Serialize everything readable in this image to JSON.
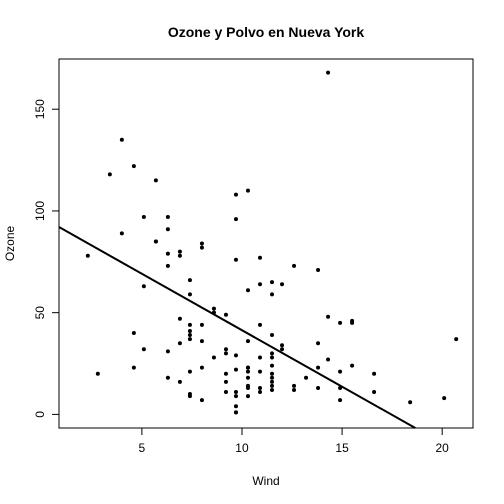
{
  "chart_data": {
    "type": "scatter",
    "title": "Ozone y Polvo en Nueva York",
    "xlabel": "Wind",
    "ylabel": "Ozone",
    "xlim": [
      0.86,
      21.54
    ],
    "ylim": [
      -6.68,
      174.68
    ],
    "x_ticks": [
      5,
      10,
      15,
      20
    ],
    "y_ticks": [
      0,
      50,
      100,
      150
    ],
    "grid": false,
    "legend": "none",
    "point_color": "#000000",
    "line_color": "#000000",
    "regression_line": {
      "intercept": 96.87,
      "slope": -5.55
    },
    "points": [
      {
        "x": 7.4,
        "y": 41
      },
      {
        "x": 8.0,
        "y": 36
      },
      {
        "x": 12.6,
        "y": 12
      },
      {
        "x": 11.5,
        "y": 18
      },
      {
        "x": 8.6,
        "y": 28
      },
      {
        "x": 13.8,
        "y": 23
      },
      {
        "x": 20.1,
        "y": 8
      },
      {
        "x": 9.7,
        "y": 1
      },
      {
        "x": 9.2,
        "y": 11
      },
      {
        "x": 10.9,
        "y": 11
      },
      {
        "x": 13.2,
        "y": 18
      },
      {
        "x": 11.5,
        "y": 14
      },
      {
        "x": 12.0,
        "y": 34
      },
      {
        "x": 18.4,
        "y": 6
      },
      {
        "x": 11.5,
        "y": 30
      },
      {
        "x": 9.7,
        "y": 11
      },
      {
        "x": 9.7,
        "y": 1
      },
      {
        "x": 16.6,
        "y": 11
      },
      {
        "x": 9.7,
        "y": 4
      },
      {
        "x": 12.0,
        "y": 32
      },
      {
        "x": 14.9,
        "y": 45
      },
      {
        "x": 5.7,
        "y": 115
      },
      {
        "x": 7.4,
        "y": 37
      },
      {
        "x": 9.7,
        "y": 29
      },
      {
        "x": 13.8,
        "y": 71
      },
      {
        "x": 11.5,
        "y": 39
      },
      {
        "x": 8.0,
        "y": 23
      },
      {
        "x": 14.9,
        "y": 21
      },
      {
        "x": 20.7,
        "y": 37
      },
      {
        "x": 9.2,
        "y": 20
      },
      {
        "x": 11.5,
        "y": 12
      },
      {
        "x": 10.3,
        "y": 13
      },
      {
        "x": 4.0,
        "y": 135
      },
      {
        "x": 9.2,
        "y": 49
      },
      {
        "x": 9.2,
        "y": 32
      },
      {
        "x": 10.9,
        "y": 64
      },
      {
        "x": 4.6,
        "y": 40
      },
      {
        "x": 10.9,
        "y": 77
      },
      {
        "x": 5.1,
        "y": 97
      },
      {
        "x": 6.3,
        "y": 97
      },
      {
        "x": 5.7,
        "y": 85
      },
      {
        "x": 7.4,
        "y": 10
      },
      {
        "x": 14.3,
        "y": 27
      },
      {
        "x": 14.9,
        "y": 7
      },
      {
        "x": 14.3,
        "y": 48
      },
      {
        "x": 6.9,
        "y": 35
      },
      {
        "x": 10.3,
        "y": 61
      },
      {
        "x": 6.3,
        "y": 79
      },
      {
        "x": 5.1,
        "y": 63
      },
      {
        "x": 11.5,
        "y": 16
      },
      {
        "x": 6.9,
        "y": 80
      },
      {
        "x": 9.7,
        "y": 108
      },
      {
        "x": 11.5,
        "y": 20
      },
      {
        "x": 8.6,
        "y": 52
      },
      {
        "x": 8.0,
        "y": 82
      },
      {
        "x": 8.6,
        "y": 50
      },
      {
        "x": 12.0,
        "y": 64
      },
      {
        "x": 7.4,
        "y": 59
      },
      {
        "x": 7.4,
        "y": 39
      },
      {
        "x": 7.4,
        "y": 9
      },
      {
        "x": 9.2,
        "y": 16
      },
      {
        "x": 6.9,
        "y": 78
      },
      {
        "x": 13.8,
        "y": 35
      },
      {
        "x": 7.4,
        "y": 66
      },
      {
        "x": 4.6,
        "y": 122
      },
      {
        "x": 4.0,
        "y": 89
      },
      {
        "x": 10.3,
        "y": 110
      },
      {
        "x": 8.0,
        "y": 44
      },
      {
        "x": 11.5,
        "y": 28
      },
      {
        "x": 11.5,
        "y": 65
      },
      {
        "x": 9.7,
        "y": 22
      },
      {
        "x": 11.5,
        "y": 59
      },
      {
        "x": 10.3,
        "y": 23
      },
      {
        "x": 6.3,
        "y": 31
      },
      {
        "x": 7.4,
        "y": 44
      },
      {
        "x": 10.9,
        "y": 21
      },
      {
        "x": 10.3,
        "y": 9
      },
      {
        "x": 15.5,
        "y": 45
      },
      {
        "x": 14.3,
        "y": 168
      },
      {
        "x": 12.6,
        "y": 73
      },
      {
        "x": 9.7,
        "y": 76
      },
      {
        "x": 3.4,
        "y": 118
      },
      {
        "x": 8.0,
        "y": 84
      },
      {
        "x": 5.7,
        "y": 85
      },
      {
        "x": 9.7,
        "y": 96
      },
      {
        "x": 2.3,
        "y": 78
      },
      {
        "x": 6.3,
        "y": 73
      },
      {
        "x": 6.3,
        "y": 91
      },
      {
        "x": 6.9,
        "y": 47
      },
      {
        "x": 5.1,
        "y": 32
      },
      {
        "x": 2.8,
        "y": 20
      },
      {
        "x": 4.6,
        "y": 23
      },
      {
        "x": 7.4,
        "y": 21
      },
      {
        "x": 15.5,
        "y": 24
      },
      {
        "x": 10.9,
        "y": 44
      },
      {
        "x": 10.3,
        "y": 21
      },
      {
        "x": 10.9,
        "y": 28
      },
      {
        "x": 9.7,
        "y": 9
      },
      {
        "x": 14.9,
        "y": 13
      },
      {
        "x": 15.5,
        "y": 46
      },
      {
        "x": 6.3,
        "y": 18
      },
      {
        "x": 10.9,
        "y": 13
      },
      {
        "x": 11.5,
        "y": 24
      },
      {
        "x": 6.9,
        "y": 16
      },
      {
        "x": 13.8,
        "y": 13
      },
      {
        "x": 10.3,
        "y": 23
      },
      {
        "x": 10.3,
        "y": 36
      },
      {
        "x": 8.0,
        "y": 7
      },
      {
        "x": 12.6,
        "y": 14
      },
      {
        "x": 9.2,
        "y": 30
      },
      {
        "x": 10.3,
        "y": 14
      },
      {
        "x": 10.3,
        "y": 18
      },
      {
        "x": 16.6,
        "y": 20
      }
    ]
  }
}
